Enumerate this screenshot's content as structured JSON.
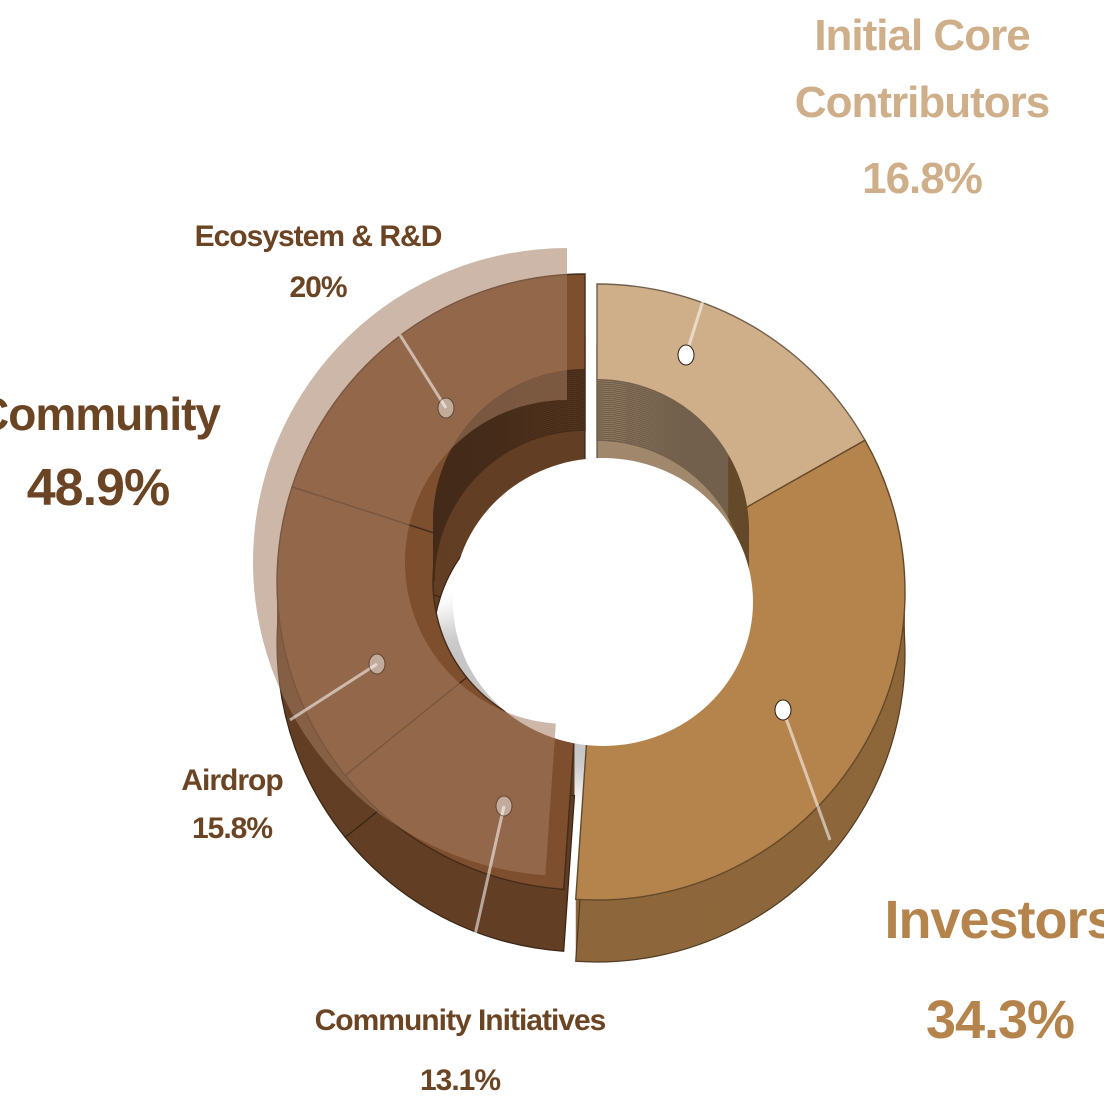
{
  "chart_data": {
    "type": "pie",
    "title": "",
    "slices": [
      {
        "id": "initial-core-contributors",
        "label": "Initial Core Contributors",
        "label_lines": [
          "Initial Core",
          "Contributors"
        ],
        "value": 16.8,
        "value_label": "16.8%",
        "color": "#cfae8a"
      },
      {
        "id": "investors",
        "label": "Investors",
        "label_lines": [
          "Investors"
        ],
        "value": 34.3,
        "value_label": "34.3%",
        "color": "#b5844c"
      },
      {
        "id": "community-initiatives",
        "label": "Community Initiatives",
        "label_lines": [
          "Community Initiatives"
        ],
        "value": 13.1,
        "value_label": "13.1%",
        "color": "#7e4f2e"
      },
      {
        "id": "airdrop",
        "label": "Airdrop",
        "label_lines": [
          "Airdrop"
        ],
        "value": 15.8,
        "value_label": "15.8%",
        "color": "#7e4f2e"
      },
      {
        "id": "ecosystem-rd",
        "label": "Ecosystem & R&D",
        "label_lines": [
          "Ecosystem & R&D"
        ],
        "value": 20,
        "value_label": "20%",
        "color": "#7e4f2e"
      }
    ],
    "group": {
      "id": "community",
      "label": "Community",
      "value": 48.9,
      "value_label": "48.9%",
      "members": [
        "community-initiatives",
        "airdrop",
        "ecosystem-rd"
      ],
      "color": "#7e4f2e"
    },
    "legend": "none",
    "grid": false
  },
  "colors": {
    "community_text": "#6b4423",
    "investors_text": "#b5844c",
    "core_text": "#cfae8a",
    "community_overlay": "#a47b60"
  }
}
